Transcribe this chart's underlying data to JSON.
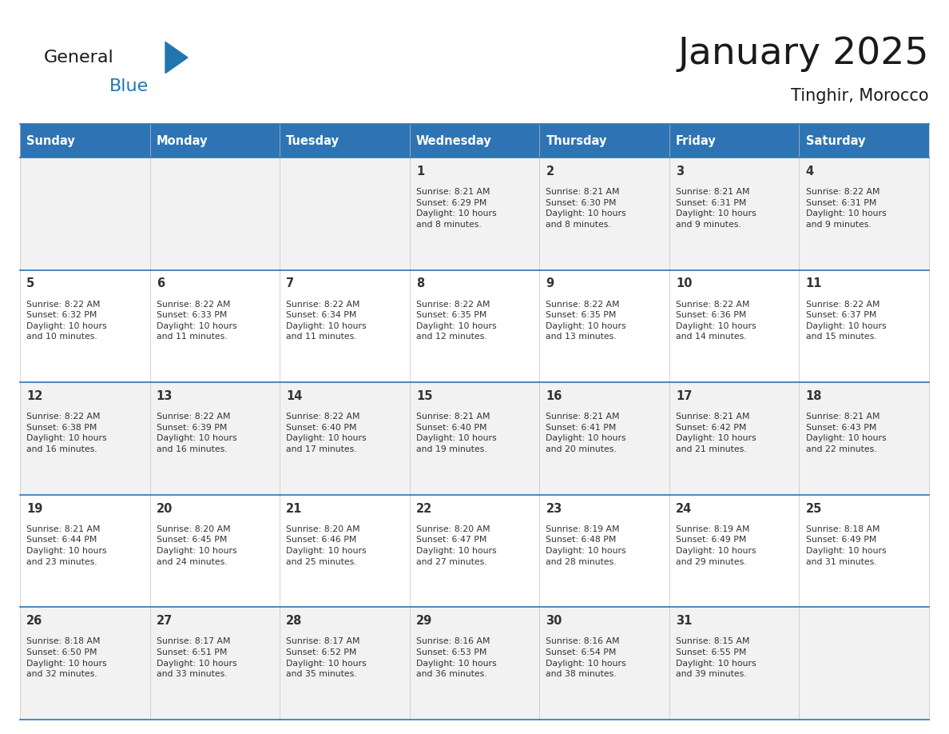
{
  "title": "January 2025",
  "subtitle": "Tinghir, Morocco",
  "header_bg": "#2E74B5",
  "header_text_color": "#FFFFFF",
  "day_names": [
    "Sunday",
    "Monday",
    "Tuesday",
    "Wednesday",
    "Thursday",
    "Friday",
    "Saturday"
  ],
  "row_bg_light": "#F2F2F2",
  "row_bg_white": "#FFFFFF",
  "cell_border_color": "#2E74B5",
  "day_num_color": "#333333",
  "info_color": "#333333",
  "calendar": [
    [
      {
        "day": null,
        "info": ""
      },
      {
        "day": null,
        "info": ""
      },
      {
        "day": null,
        "info": ""
      },
      {
        "day": 1,
        "info": "Sunrise: 8:21 AM\nSunset: 6:29 PM\nDaylight: 10 hours\nand 8 minutes."
      },
      {
        "day": 2,
        "info": "Sunrise: 8:21 AM\nSunset: 6:30 PM\nDaylight: 10 hours\nand 8 minutes."
      },
      {
        "day": 3,
        "info": "Sunrise: 8:21 AM\nSunset: 6:31 PM\nDaylight: 10 hours\nand 9 minutes."
      },
      {
        "day": 4,
        "info": "Sunrise: 8:22 AM\nSunset: 6:31 PM\nDaylight: 10 hours\nand 9 minutes."
      }
    ],
    [
      {
        "day": 5,
        "info": "Sunrise: 8:22 AM\nSunset: 6:32 PM\nDaylight: 10 hours\nand 10 minutes."
      },
      {
        "day": 6,
        "info": "Sunrise: 8:22 AM\nSunset: 6:33 PM\nDaylight: 10 hours\nand 11 minutes."
      },
      {
        "day": 7,
        "info": "Sunrise: 8:22 AM\nSunset: 6:34 PM\nDaylight: 10 hours\nand 11 minutes."
      },
      {
        "day": 8,
        "info": "Sunrise: 8:22 AM\nSunset: 6:35 PM\nDaylight: 10 hours\nand 12 minutes."
      },
      {
        "day": 9,
        "info": "Sunrise: 8:22 AM\nSunset: 6:35 PM\nDaylight: 10 hours\nand 13 minutes."
      },
      {
        "day": 10,
        "info": "Sunrise: 8:22 AM\nSunset: 6:36 PM\nDaylight: 10 hours\nand 14 minutes."
      },
      {
        "day": 11,
        "info": "Sunrise: 8:22 AM\nSunset: 6:37 PM\nDaylight: 10 hours\nand 15 minutes."
      }
    ],
    [
      {
        "day": 12,
        "info": "Sunrise: 8:22 AM\nSunset: 6:38 PM\nDaylight: 10 hours\nand 16 minutes."
      },
      {
        "day": 13,
        "info": "Sunrise: 8:22 AM\nSunset: 6:39 PM\nDaylight: 10 hours\nand 16 minutes."
      },
      {
        "day": 14,
        "info": "Sunrise: 8:22 AM\nSunset: 6:40 PM\nDaylight: 10 hours\nand 17 minutes."
      },
      {
        "day": 15,
        "info": "Sunrise: 8:21 AM\nSunset: 6:40 PM\nDaylight: 10 hours\nand 19 minutes."
      },
      {
        "day": 16,
        "info": "Sunrise: 8:21 AM\nSunset: 6:41 PM\nDaylight: 10 hours\nand 20 minutes."
      },
      {
        "day": 17,
        "info": "Sunrise: 8:21 AM\nSunset: 6:42 PM\nDaylight: 10 hours\nand 21 minutes."
      },
      {
        "day": 18,
        "info": "Sunrise: 8:21 AM\nSunset: 6:43 PM\nDaylight: 10 hours\nand 22 minutes."
      }
    ],
    [
      {
        "day": 19,
        "info": "Sunrise: 8:21 AM\nSunset: 6:44 PM\nDaylight: 10 hours\nand 23 minutes."
      },
      {
        "day": 20,
        "info": "Sunrise: 8:20 AM\nSunset: 6:45 PM\nDaylight: 10 hours\nand 24 minutes."
      },
      {
        "day": 21,
        "info": "Sunrise: 8:20 AM\nSunset: 6:46 PM\nDaylight: 10 hours\nand 25 minutes."
      },
      {
        "day": 22,
        "info": "Sunrise: 8:20 AM\nSunset: 6:47 PM\nDaylight: 10 hours\nand 27 minutes."
      },
      {
        "day": 23,
        "info": "Sunrise: 8:19 AM\nSunset: 6:48 PM\nDaylight: 10 hours\nand 28 minutes."
      },
      {
        "day": 24,
        "info": "Sunrise: 8:19 AM\nSunset: 6:49 PM\nDaylight: 10 hours\nand 29 minutes."
      },
      {
        "day": 25,
        "info": "Sunrise: 8:18 AM\nSunset: 6:49 PM\nDaylight: 10 hours\nand 31 minutes."
      }
    ],
    [
      {
        "day": 26,
        "info": "Sunrise: 8:18 AM\nSunset: 6:50 PM\nDaylight: 10 hours\nand 32 minutes."
      },
      {
        "day": 27,
        "info": "Sunrise: 8:17 AM\nSunset: 6:51 PM\nDaylight: 10 hours\nand 33 minutes."
      },
      {
        "day": 28,
        "info": "Sunrise: 8:17 AM\nSunset: 6:52 PM\nDaylight: 10 hours\nand 35 minutes."
      },
      {
        "day": 29,
        "info": "Sunrise: 8:16 AM\nSunset: 6:53 PM\nDaylight: 10 hours\nand 36 minutes."
      },
      {
        "day": 30,
        "info": "Sunrise: 8:16 AM\nSunset: 6:54 PM\nDaylight: 10 hours\nand 38 minutes."
      },
      {
        "day": 31,
        "info": "Sunrise: 8:15 AM\nSunset: 6:55 PM\nDaylight: 10 hours\nand 39 minutes."
      },
      {
        "day": null,
        "info": ""
      }
    ]
  ]
}
